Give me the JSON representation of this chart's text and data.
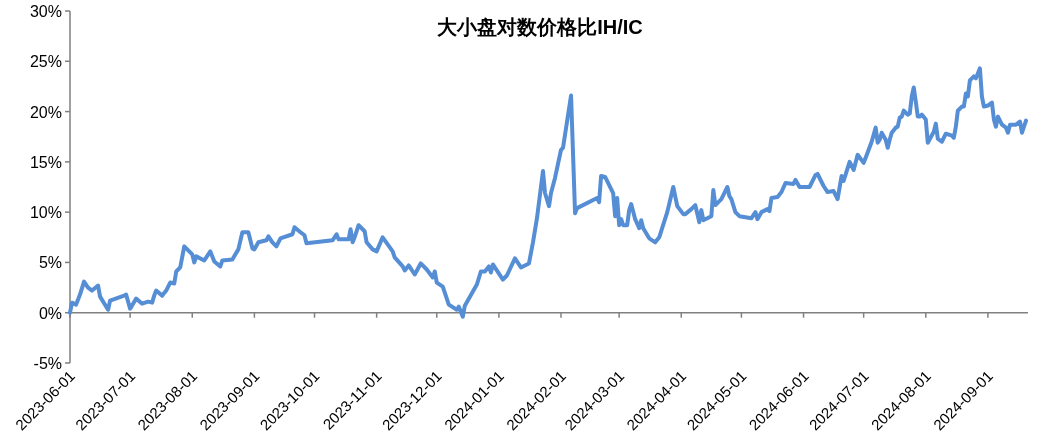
{
  "chart_data": {
    "type": "line",
    "title": "大小盘对数价格比IH/IC",
    "x": [
      "2023-06-01",
      "2023-06-02",
      "2023-06-04",
      "2023-06-06",
      "2023-06-08",
      "2023-06-10",
      "2023-06-12",
      "2023-06-15",
      "2023-06-16",
      "2023-06-20",
      "2023-06-21",
      "2023-06-28",
      "2023-06-29",
      "2023-07-01",
      "2023-07-04",
      "2023-07-07",
      "2023-07-10",
      "2023-07-12",
      "2023-07-13",
      "2023-07-14",
      "2023-07-17",
      "2023-07-19",
      "2023-07-21",
      "2023-07-23",
      "2023-07-24",
      "2023-07-26",
      "2023-07-28",
      "2023-08-01",
      "2023-08-02",
      "2023-08-03",
      "2023-08-07",
      "2023-08-10",
      "2023-08-12",
      "2023-08-15",
      "2023-08-16",
      "2023-08-21",
      "2023-08-24",
      "2023-08-26",
      "2023-08-29",
      "2023-08-31",
      "2023-09-01",
      "2023-09-03",
      "2023-09-07",
      "2023-09-08",
      "2023-09-10",
      "2023-09-12",
      "2023-09-14",
      "2023-09-20",
      "2023-09-21",
      "2023-09-24",
      "2023-09-26",
      "2023-09-27",
      "2023-10-10",
      "2023-10-12",
      "2023-10-13",
      "2023-10-18",
      "2023-10-19",
      "2023-10-20",
      "2023-10-21",
      "2023-10-23",
      "2023-10-26",
      "2023-10-27",
      "2023-10-30",
      "2023-11-01",
      "2023-11-04",
      "2023-11-09",
      "2023-11-10",
      "2023-11-14",
      "2023-11-15",
      "2023-11-17",
      "2023-11-20",
      "2023-11-23",
      "2023-11-26",
      "2023-11-29",
      "2023-11-30",
      "2023-12-01",
      "2023-12-04",
      "2023-12-07",
      "2023-12-11",
      "2023-12-12",
      "2023-12-14",
      "2023-12-15",
      "2023-12-21",
      "2023-12-23",
      "2023-12-25",
      "2023-12-27",
      "2023-12-28",
      "2023-12-29",
      "2024-01-03",
      "2024-01-05",
      "2024-01-09",
      "2024-01-10",
      "2024-01-12",
      "2024-01-16",
      "2024-01-18",
      "2024-01-20",
      "2024-01-23",
      "2024-01-24",
      "2024-01-26",
      "2024-01-27",
      "2024-01-29",
      "2024-02-01",
      "2024-02-02",
      "2024-02-06",
      "2024-02-08",
      "2024-02-09",
      "2024-02-19",
      "2024-02-20",
      "2024-02-21",
      "2024-02-23",
      "2024-02-27",
      "2024-02-28",
      "2024-02-29",
      "2024-03-01",
      "2024-03-02",
      "2024-03-03",
      "2024-03-05",
      "2024-03-06",
      "2024-03-07",
      "2024-03-09",
      "2024-03-11",
      "2024-03-12",
      "2024-03-13",
      "2024-03-16",
      "2024-03-19",
      "2024-03-21",
      "2024-03-25",
      "2024-03-28",
      "2024-03-30",
      "2024-04-02",
      "2024-04-03",
      "2024-04-06",
      "2024-04-08",
      "2024-04-10",
      "2024-04-11",
      "2024-04-12",
      "2024-04-16",
      "2024-04-17",
      "2024-04-18",
      "2024-04-21",
      "2024-04-22",
      "2024-04-24",
      "2024-04-25",
      "2024-04-26",
      "2024-04-28",
      "2024-04-30",
      "2024-05-06",
      "2024-05-08",
      "2024-05-09",
      "2024-05-11",
      "2024-05-14",
      "2024-05-15",
      "2024-05-16",
      "2024-05-19",
      "2024-05-21",
      "2024-05-23",
      "2024-05-27",
      "2024-05-28",
      "2024-05-30",
      "2024-06-04",
      "2024-06-07",
      "2024-06-08",
      "2024-06-11",
      "2024-06-13",
      "2024-06-16",
      "2024-06-18",
      "2024-06-20",
      "2024-06-21",
      "2024-06-24",
      "2024-06-26",
      "2024-06-28",
      "2024-07-01",
      "2024-07-02",
      "2024-07-05",
      "2024-07-07",
      "2024-07-08",
      "2024-07-09",
      "2024-07-10",
      "2024-07-12",
      "2024-07-13",
      "2024-07-14",
      "2024-07-15",
      "2024-07-17",
      "2024-07-18",
      "2024-07-19",
      "2024-07-20",
      "2024-07-21",
      "2024-07-23",
      "2024-07-24",
      "2024-07-25",
      "2024-07-26",
      "2024-07-27",
      "2024-07-28",
      "2024-07-29",
      "2024-07-30",
      "2024-08-01",
      "2024-08-02",
      "2024-08-05",
      "2024-08-06",
      "2024-08-07",
      "2024-08-09",
      "2024-08-11",
      "2024-08-14",
      "2024-08-15",
      "2024-08-16",
      "2024-08-17",
      "2024-08-19",
      "2024-08-20",
      "2024-08-21",
      "2024-08-22",
      "2024-08-23",
      "2024-08-25",
      "2024-08-26",
      "2024-08-28",
      "2024-08-29",
      "2024-08-30",
      "2024-09-01",
      "2024-09-03",
      "2024-09-04",
      "2024-09-05",
      "2024-09-06",
      "2024-09-08",
      "2024-09-10",
      "2024-09-11",
      "2024-09-12",
      "2024-09-15",
      "2024-09-17",
      "2024-09-18",
      "2024-09-20"
    ],
    "series": [
      {
        "color": "#558ed5",
        "values": [
          0.0,
          1.0,
          0.8,
          1.8,
          3.1,
          2.5,
          2.2,
          2.7,
          1.6,
          0.3,
          1.2,
          1.7,
          1.8,
          0.4,
          1.4,
          0.9,
          1.1,
          1.0,
          1.7,
          2.2,
          1.7,
          2.2,
          3.0,
          2.9,
          4.1,
          4.5,
          6.6,
          5.8,
          5.0,
          5.6,
          5.2,
          6.1,
          5.1,
          4.6,
          5.2,
          5.3,
          6.3,
          8.0,
          8.0,
          6.4,
          6.3,
          7.0,
          7.2,
          7.6,
          7.0,
          6.6,
          7.4,
          7.8,
          8.5,
          8.0,
          7.7,
          6.9,
          7.2,
          7.8,
          7.3,
          7.3,
          8.3,
          7.0,
          7.5,
          8.7,
          8.1,
          7.0,
          6.3,
          6.1,
          7.5,
          6.1,
          5.5,
          4.6,
          4.2,
          4.7,
          3.8,
          4.9,
          4.3,
          3.5,
          4.1,
          3.0,
          2.6,
          0.8,
          0.3,
          0.6,
          -0.4,
          0.7,
          2.8,
          4.1,
          4.1,
          4.6,
          4.0,
          4.8,
          3.3,
          3.7,
          5.4,
          5.1,
          4.5,
          4.9,
          7.0,
          9.4,
          14.1,
          11.9,
          10.6,
          11.9,
          13.4,
          16.2,
          16.4,
          21.6,
          9.9,
          10.4,
          11.4,
          11.0,
          13.6,
          13.5,
          11.9,
          9.6,
          11.4,
          8.7,
          9.3,
          8.7,
          8.7,
          10.2,
          10.8,
          9.3,
          8.4,
          9.2,
          8.4,
          7.4,
          7.0,
          7.5,
          10.0,
          12.5,
          10.6,
          9.8,
          9.8,
          10.3,
          10.7,
          9.0,
          10.2,
          9.2,
          9.6,
          12.2,
          10.7,
          11.3,
          11.7,
          12.5,
          11.6,
          11.3,
          10.0,
          9.6,
          9.4,
          10.0,
          9.3,
          10.0,
          10.3,
          10.1,
          11.4,
          11.5,
          12.0,
          12.9,
          12.8,
          13.2,
          12.5,
          12.5,
          13.7,
          13.8,
          12.6,
          12.0,
          12.1,
          11.3,
          13.6,
          13.1,
          15.0,
          14.2,
          15.7,
          14.9,
          15.4,
          17.0,
          18.4,
          16.9,
          17.2,
          17.9,
          17.2,
          16.4,
          17.2,
          17.9,
          18.4,
          18.5,
          19.4,
          19.5,
          20.1,
          19.7,
          19.8,
          21.5,
          22.4,
          21.0,
          19.5,
          19.5,
          19.7,
          19.2,
          16.9,
          18.0,
          18.8,
          17.3,
          17.0,
          17.8,
          17.6,
          17.4,
          18.5,
          20.1,
          20.5,
          20.5,
          21.8,
          21.5,
          23.1,
          23.5,
          23.3,
          24.3,
          21.5,
          20.5,
          20.6,
          20.9,
          19.2,
          18.5,
          19.5,
          18.7,
          18.4,
          17.9,
          18.7,
          18.7,
          19.0,
          17.9,
          19.1
        ]
      }
    ],
    "xlim": [
      "2023-06-01",
      "2024-09-21"
    ],
    "xticks": [
      "2023-06-01",
      "2023-07-01",
      "2023-08-01",
      "2023-09-01",
      "2023-10-01",
      "2023-11-01",
      "2023-12-01",
      "2024-01-01",
      "2024-02-01",
      "2024-03-01",
      "2024-04-01",
      "2024-05-01",
      "2024-06-01",
      "2024-07-01",
      "2024-08-01",
      "2024-09-01"
    ],
    "ylim": [
      -5,
      30
    ],
    "yticks": [
      {
        "value": -5,
        "label": "-5%"
      },
      {
        "value": 0,
        "label": "0%"
      },
      {
        "value": 5,
        "label": "5%"
      },
      {
        "value": 10,
        "label": "10%"
      },
      {
        "value": 15,
        "label": "15%"
      },
      {
        "value": 20,
        "label": "20%"
      },
      {
        "value": 25,
        "label": "25%"
      },
      {
        "value": 30,
        "label": "30%"
      }
    ]
  }
}
